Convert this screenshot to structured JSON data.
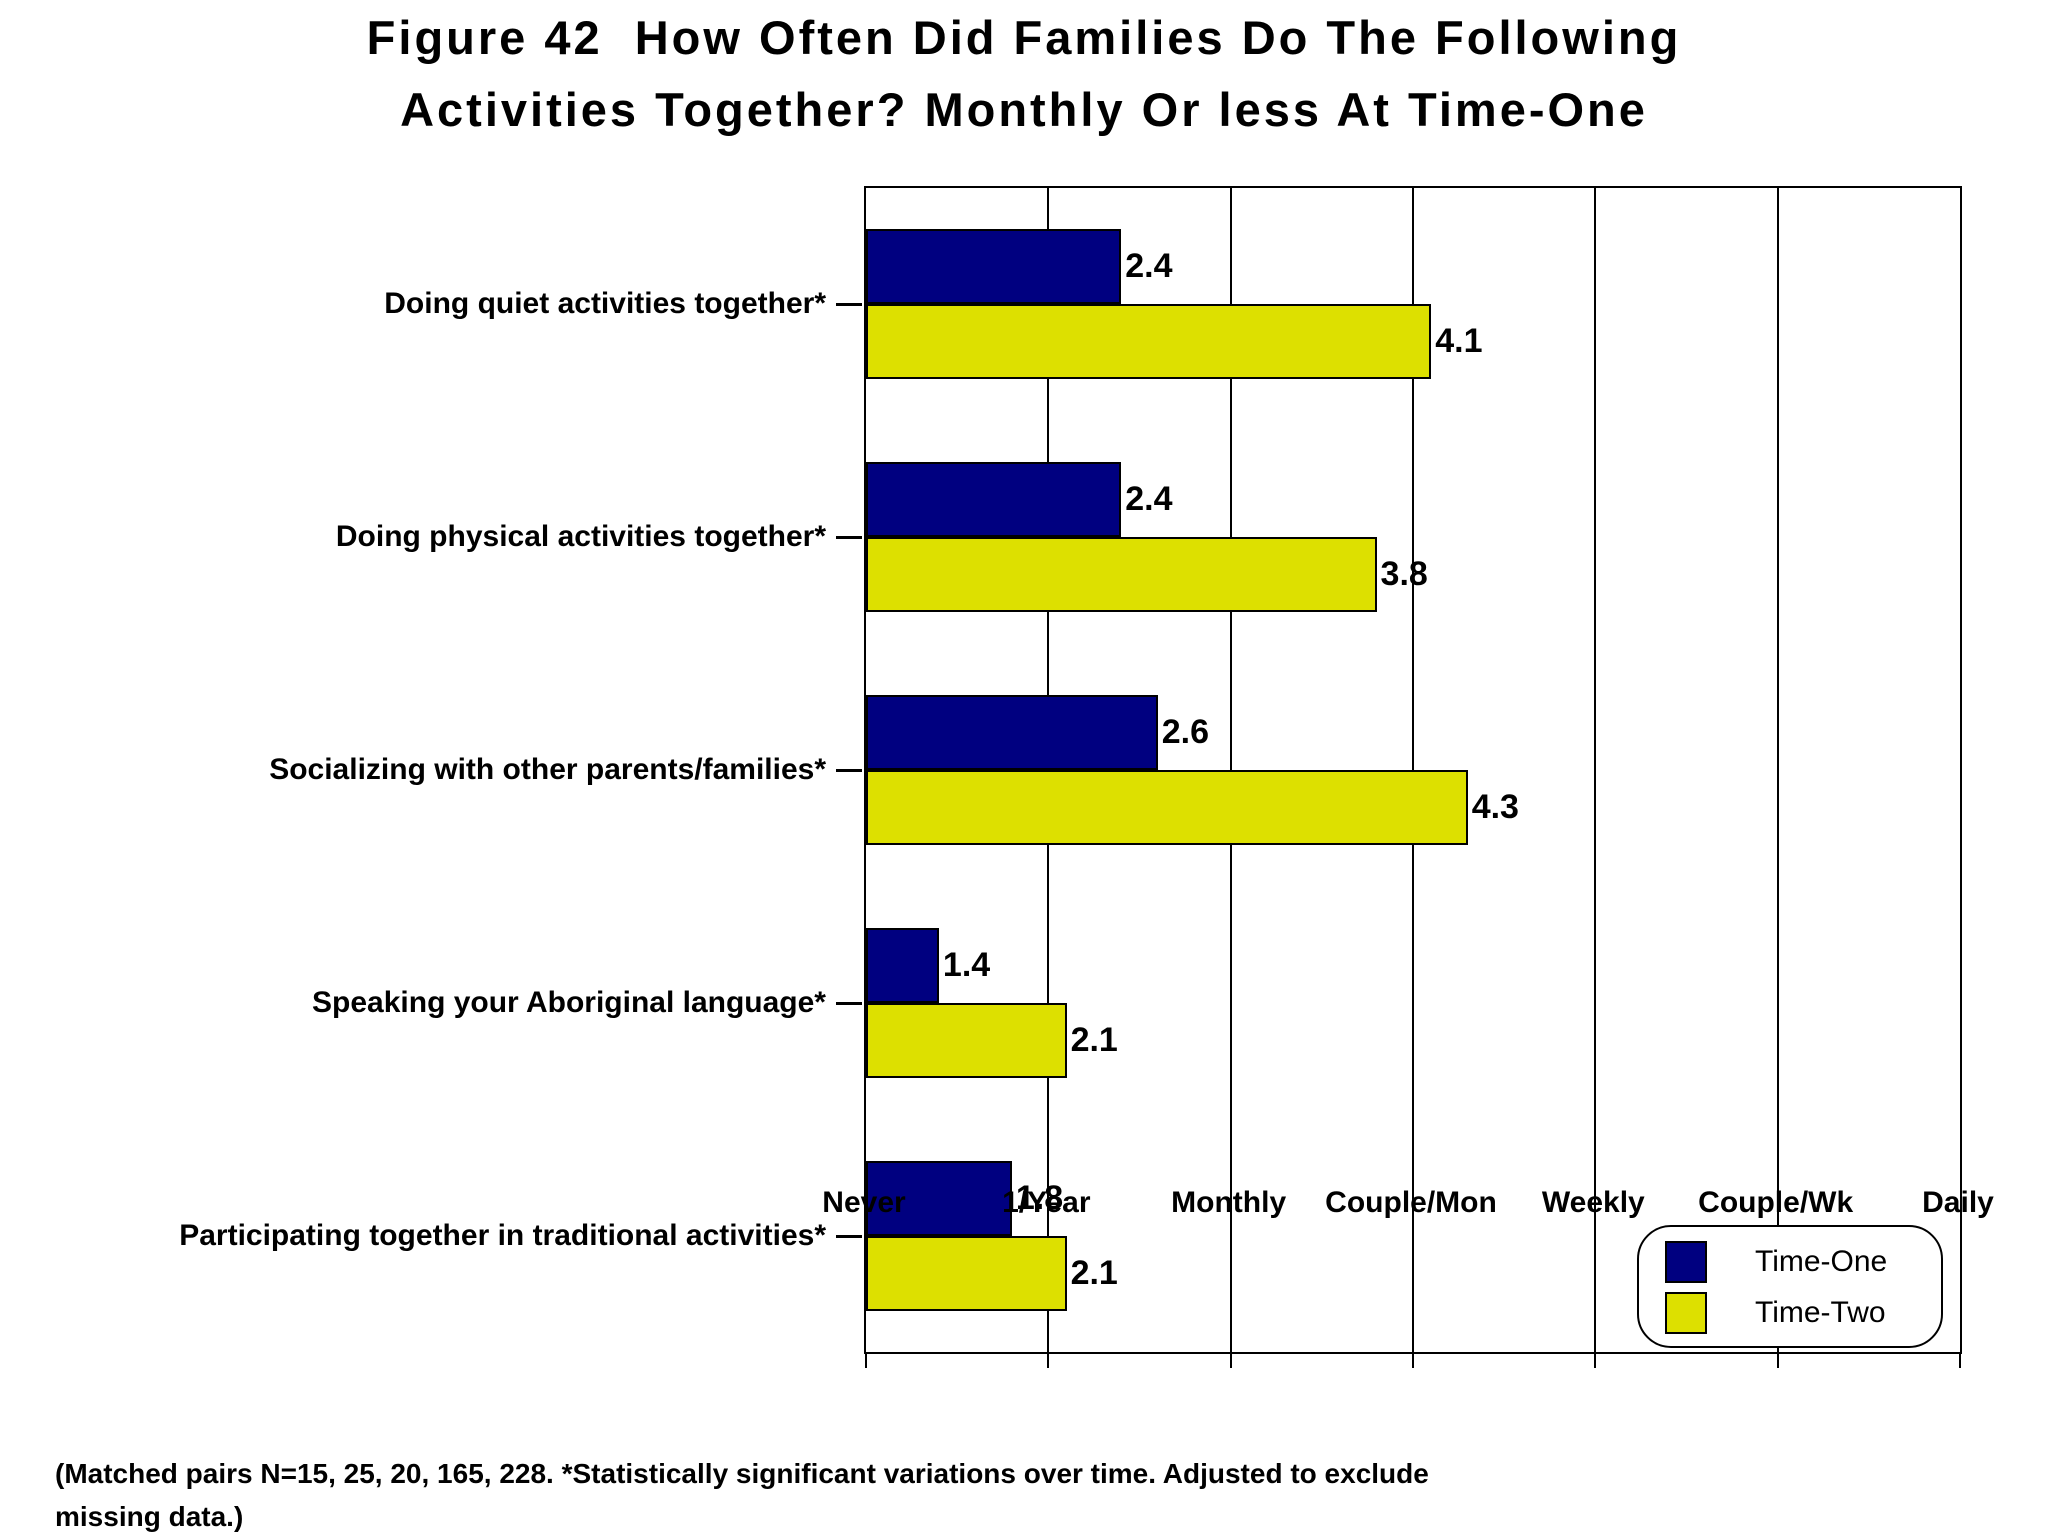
{
  "figure": {
    "title_line1": "Figure 42  How Often Did Families Do The Following",
    "title_line2": "Activities Together? Monthly Or less At Time-One",
    "footnote_line1": "(Matched pairs N=15, 25, 20, 165, 228. *Statistically significant variations over time. Adjusted to exclude",
    "footnote_line2": "missing data.)"
  },
  "chart_data": {
    "type": "bar",
    "orientation": "horizontal",
    "title": "Figure 42  How Often Did Families Do The Following Activities Together? Monthly Or less At Time-One",
    "categories": [
      "Doing quiet activities together*",
      "Doing physical activities together*",
      "Socializing with other parents/families*",
      "Speaking your Aboriginal language*",
      "Participating together in traditional activities*"
    ],
    "series": [
      {
        "name": "Time-One",
        "color": "#000080",
        "values": [
          2.4,
          2.4,
          2.6,
          1.4,
          1.8
        ]
      },
      {
        "name": "Time-Two",
        "color": "#dde000",
        "values": [
          4.1,
          3.8,
          4.3,
          2.1,
          2.1
        ]
      }
    ],
    "x_axis": {
      "labels": [
        "Never",
        "1/Year",
        "Monthly",
        "Couple/Mon",
        "Weekly",
        "Couple/Wk",
        "Daily"
      ],
      "values": [
        1,
        2,
        3,
        4,
        5,
        6,
        7
      ],
      "min": 1,
      "max": 7
    },
    "value_label_decimals": 1,
    "grid": "vertical",
    "bar_border_color": "#000000",
    "legend": {
      "position": "bottom-right"
    },
    "footnote": "(Matched pairs N=15, 25, 20, 165, 228. *Statistically significant variations over time. Adjusted to exclude missing data.)"
  }
}
